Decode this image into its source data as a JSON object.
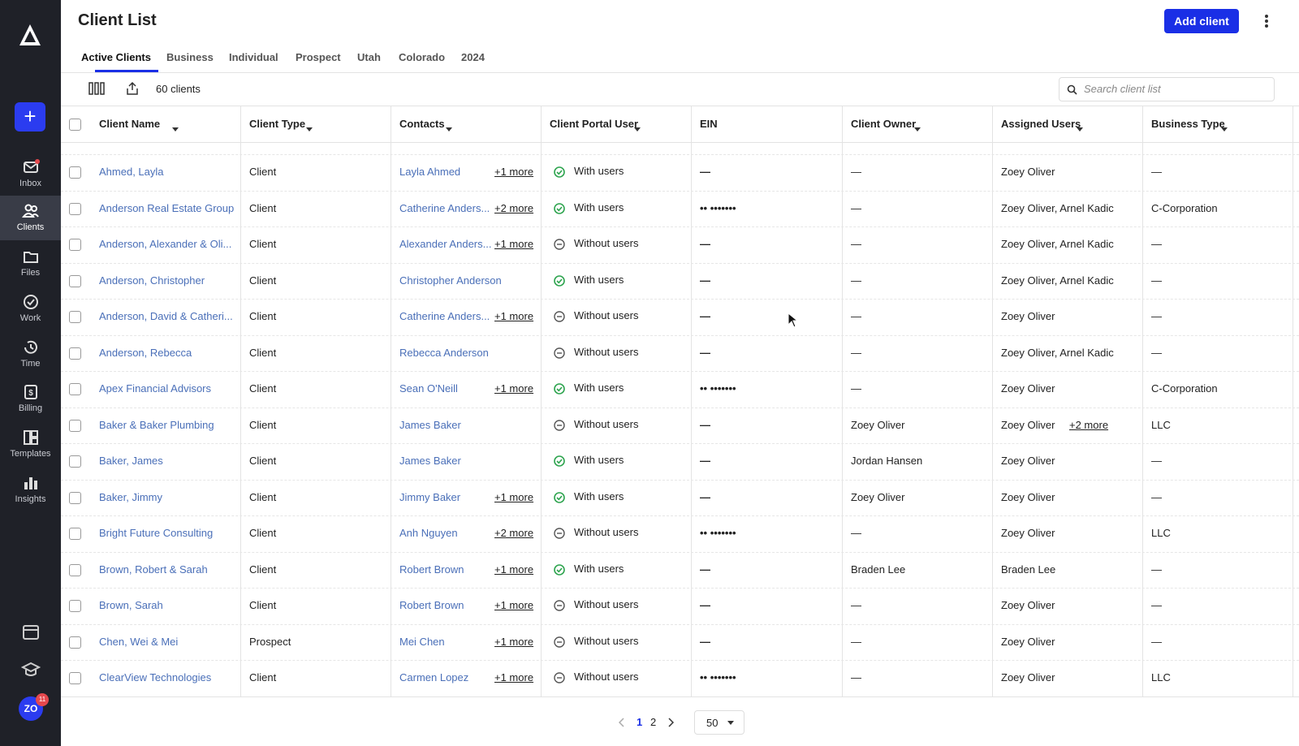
{
  "sidebar": {
    "items": [
      "Inbox",
      "Clients",
      "Files",
      "Work",
      "Time",
      "Billing",
      "Templates",
      "Insights"
    ],
    "avatar": "ZO",
    "badge": "11"
  },
  "header": {
    "title": "Client List",
    "button": "Add client"
  },
  "tabs": [
    "Active Clients",
    "Business",
    "Individual",
    "Prospect",
    "Utah",
    "Colorado",
    "2024"
  ],
  "toolbar": {
    "count": "60 clients",
    "search": "Search client list"
  },
  "table": {
    "columns": [
      "Client Name",
      "Client Type",
      "Contacts",
      "Client Portal User",
      "EIN",
      "Client Owner",
      "Assigned Users",
      "Business Type"
    ],
    "rows": [
      {
        "name": "Ahmed, Layla",
        "type": "Client",
        "contact": "Layla Ahmed",
        "more": "+1 more",
        "portal": "With users",
        "portal_active": true,
        "ein": "—",
        "owner": "—",
        "assigned": "Zoey Oliver",
        "assigned_more": null,
        "business": "—"
      },
      {
        "name": "Anderson Real Estate Group",
        "type": "Client",
        "contact": "Catherine Anders...",
        "more": "+2 more",
        "portal": "With users",
        "portal_active": true,
        "ein": "•• •••••••",
        "owner": "—",
        "assigned": "Zoey Oliver, Arnel Kadic",
        "assigned_more": null,
        "business": "C-Corporation"
      },
      {
        "name": "Anderson, Alexander & Oli...",
        "type": "Client",
        "contact": "Alexander Anders...",
        "more": "+1 more",
        "portal": "Without users",
        "portal_active": false,
        "ein": "—",
        "owner": "—",
        "assigned": "Zoey Oliver, Arnel Kadic",
        "assigned_more": null,
        "business": "—"
      },
      {
        "name": "Anderson, Christopher",
        "type": "Client",
        "contact": "Christopher Anderson",
        "more": null,
        "portal": "With users",
        "portal_active": true,
        "ein": "—",
        "owner": "—",
        "assigned": "Zoey Oliver, Arnel Kadic",
        "assigned_more": null,
        "business": "—"
      },
      {
        "name": "Anderson, David & Catheri...",
        "type": "Client",
        "contact": "Catherine Anders...",
        "more": "+1 more",
        "portal": "Without users",
        "portal_active": false,
        "ein": "—",
        "owner": "—",
        "assigned": "Zoey Oliver",
        "assigned_more": null,
        "business": "—"
      },
      {
        "name": "Anderson, Rebecca",
        "type": "Client",
        "contact": "Rebecca Anderson",
        "more": null,
        "portal": "Without users",
        "portal_active": false,
        "ein": "—",
        "owner": "—",
        "assigned": "Zoey Oliver, Arnel Kadic",
        "assigned_more": null,
        "business": "—"
      },
      {
        "name": "Apex Financial Advisors",
        "type": "Client",
        "contact": "Sean O'Neill",
        "more": "+1 more",
        "portal": "With users",
        "portal_active": true,
        "ein": "•• •••••••",
        "owner": "—",
        "assigned": "Zoey Oliver",
        "assigned_more": null,
        "business": "C-Corporation"
      },
      {
        "name": "Baker & Baker Plumbing",
        "type": "Client",
        "contact": "James Baker",
        "more": null,
        "portal": "Without users",
        "portal_active": false,
        "ein": "—",
        "owner": "Zoey Oliver",
        "assigned": "Zoey Oliver",
        "assigned_more": "+2 more",
        "business": "LLC"
      },
      {
        "name": "Baker, James",
        "type": "Client",
        "contact": "James Baker",
        "more": null,
        "portal": "With users",
        "portal_active": true,
        "ein": "—",
        "owner": "Jordan Hansen",
        "assigned": "Zoey Oliver",
        "assigned_more": null,
        "business": "—"
      },
      {
        "name": "Baker, Jimmy",
        "type": "Client",
        "contact": "Jimmy Baker",
        "more": "+1 more",
        "portal": "With users",
        "portal_active": true,
        "ein": "—",
        "owner": "Zoey Oliver",
        "assigned": "Zoey Oliver",
        "assigned_more": null,
        "business": "—"
      },
      {
        "name": "Bright Future Consulting",
        "type": "Client",
        "contact": "Anh Nguyen",
        "more": "+2 more",
        "portal": "Without users",
        "portal_active": false,
        "ein": "•• •••••••",
        "owner": "—",
        "assigned": "Zoey Oliver",
        "assigned_more": null,
        "business": "LLC"
      },
      {
        "name": "Brown, Robert & Sarah",
        "type": "Client",
        "contact": "Robert Brown",
        "more": "+1 more",
        "portal": "With users",
        "portal_active": true,
        "ein": "—",
        "owner": "Braden Lee",
        "assigned": "Braden Lee",
        "assigned_more": null,
        "business": "—"
      },
      {
        "name": "Brown, Sarah",
        "type": "Client",
        "contact": "Robert Brown",
        "more": "+1 more",
        "portal": "Without users",
        "portal_active": false,
        "ein": "—",
        "owner": "—",
        "assigned": "Zoey Oliver",
        "assigned_more": null,
        "business": "—"
      },
      {
        "name": "Chen, Wei & Mei",
        "type": "Prospect",
        "contact": "Mei Chen",
        "more": "+1 more",
        "portal": "Without users",
        "portal_active": false,
        "ein": "—",
        "owner": "—",
        "assigned": "Zoey Oliver",
        "assigned_more": null,
        "business": "—"
      },
      {
        "name": "ClearView Technologies",
        "type": "Client",
        "contact": "Carmen Lopez",
        "more": "+1 more",
        "portal": "Without users",
        "portal_active": false,
        "ein": "•• •••••••",
        "owner": "—",
        "assigned": "Zoey Oliver",
        "assigned_more": null,
        "business": "LLC"
      }
    ]
  },
  "pagination": {
    "pages": [
      "1",
      "2"
    ],
    "per_page": "50"
  }
}
